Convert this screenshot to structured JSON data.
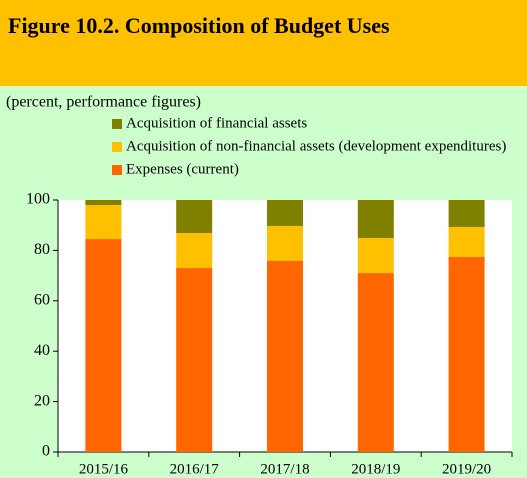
{
  "chart_data": {
    "type": "stacked_bar",
    "title": "Figure 10.2. Composition of Budget Uses",
    "subtitle": "(percent, performance figures)",
    "categories": [
      "2015/16",
      "2016/17",
      "2017/18",
      "2018/19",
      "2019/20"
    ],
    "series": [
      {
        "name": "Expenses (current)",
        "color": "#ff6600",
        "values": [
          84.5,
          73,
          75.8,
          71,
          77.4
        ]
      },
      {
        "name": "Acquisition of non-financial assets (development expenditures)",
        "color": "#ffc000",
        "values": [
          13.5,
          13.9,
          13.9,
          13.9,
          11.9
        ]
      },
      {
        "name": "Acquisition of financial assets",
        "color": "#808000",
        "values": [
          2,
          13.1,
          10.3,
          15.1,
          10.7
        ]
      }
    ],
    "ylim": [
      0,
      100
    ],
    "yticks": [
      0,
      20,
      40,
      60,
      80,
      100
    ]
  }
}
